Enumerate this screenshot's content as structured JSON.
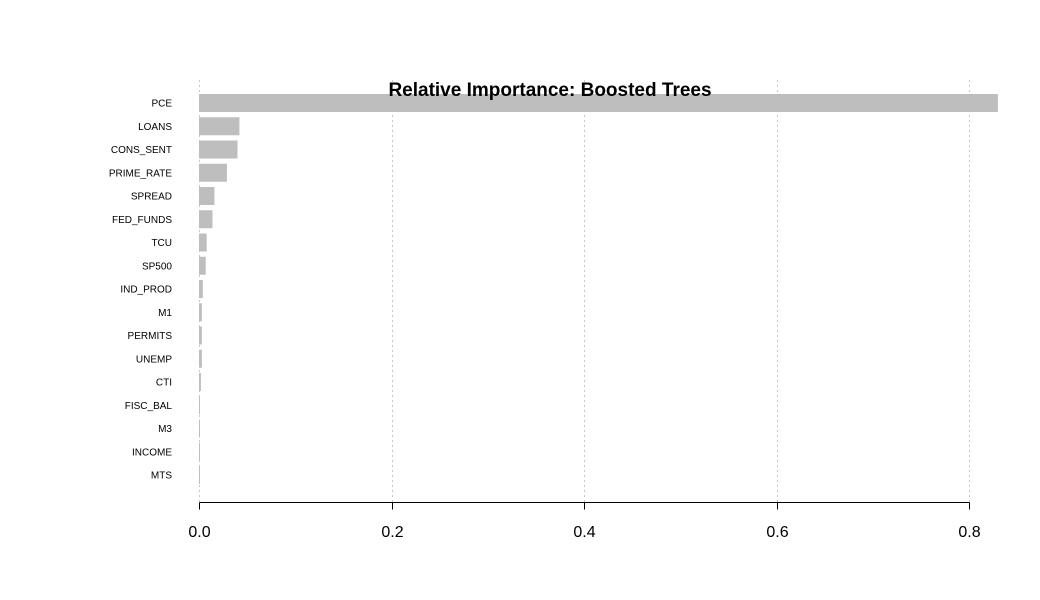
{
  "chart_data": {
    "type": "bar",
    "orientation": "horizontal",
    "title": "Relative Importance: Boosted Trees",
    "xlabel": "",
    "ylabel": "",
    "categories": [
      "PCE",
      "LOANS",
      "CONS_SENT",
      "PRIME_RATE",
      "SPREAD",
      "FED_FUNDS",
      "TCU",
      "SP500",
      "IND_PROD",
      "M1",
      "PERMITS",
      "UNEMP",
      "CTI",
      "FISC_BAL",
      "M3",
      "INCOME",
      "MTS"
    ],
    "values": [
      0.83,
      0.042,
      0.04,
      0.029,
      0.016,
      0.014,
      0.008,
      0.007,
      0.004,
      0.003,
      0.003,
      0.003,
      0.002,
      0.001,
      0.001,
      0.001,
      0.001
    ],
    "xlim": [
      0,
      0.83
    ],
    "xticks": [
      0.0,
      0.2,
      0.4,
      0.6,
      0.8
    ],
    "xtick_labels": [
      "0.0",
      "0.2",
      "0.4",
      "0.6",
      "0.8"
    ],
    "grid": "vertical dotted",
    "bar_color": "#bebebe"
  }
}
